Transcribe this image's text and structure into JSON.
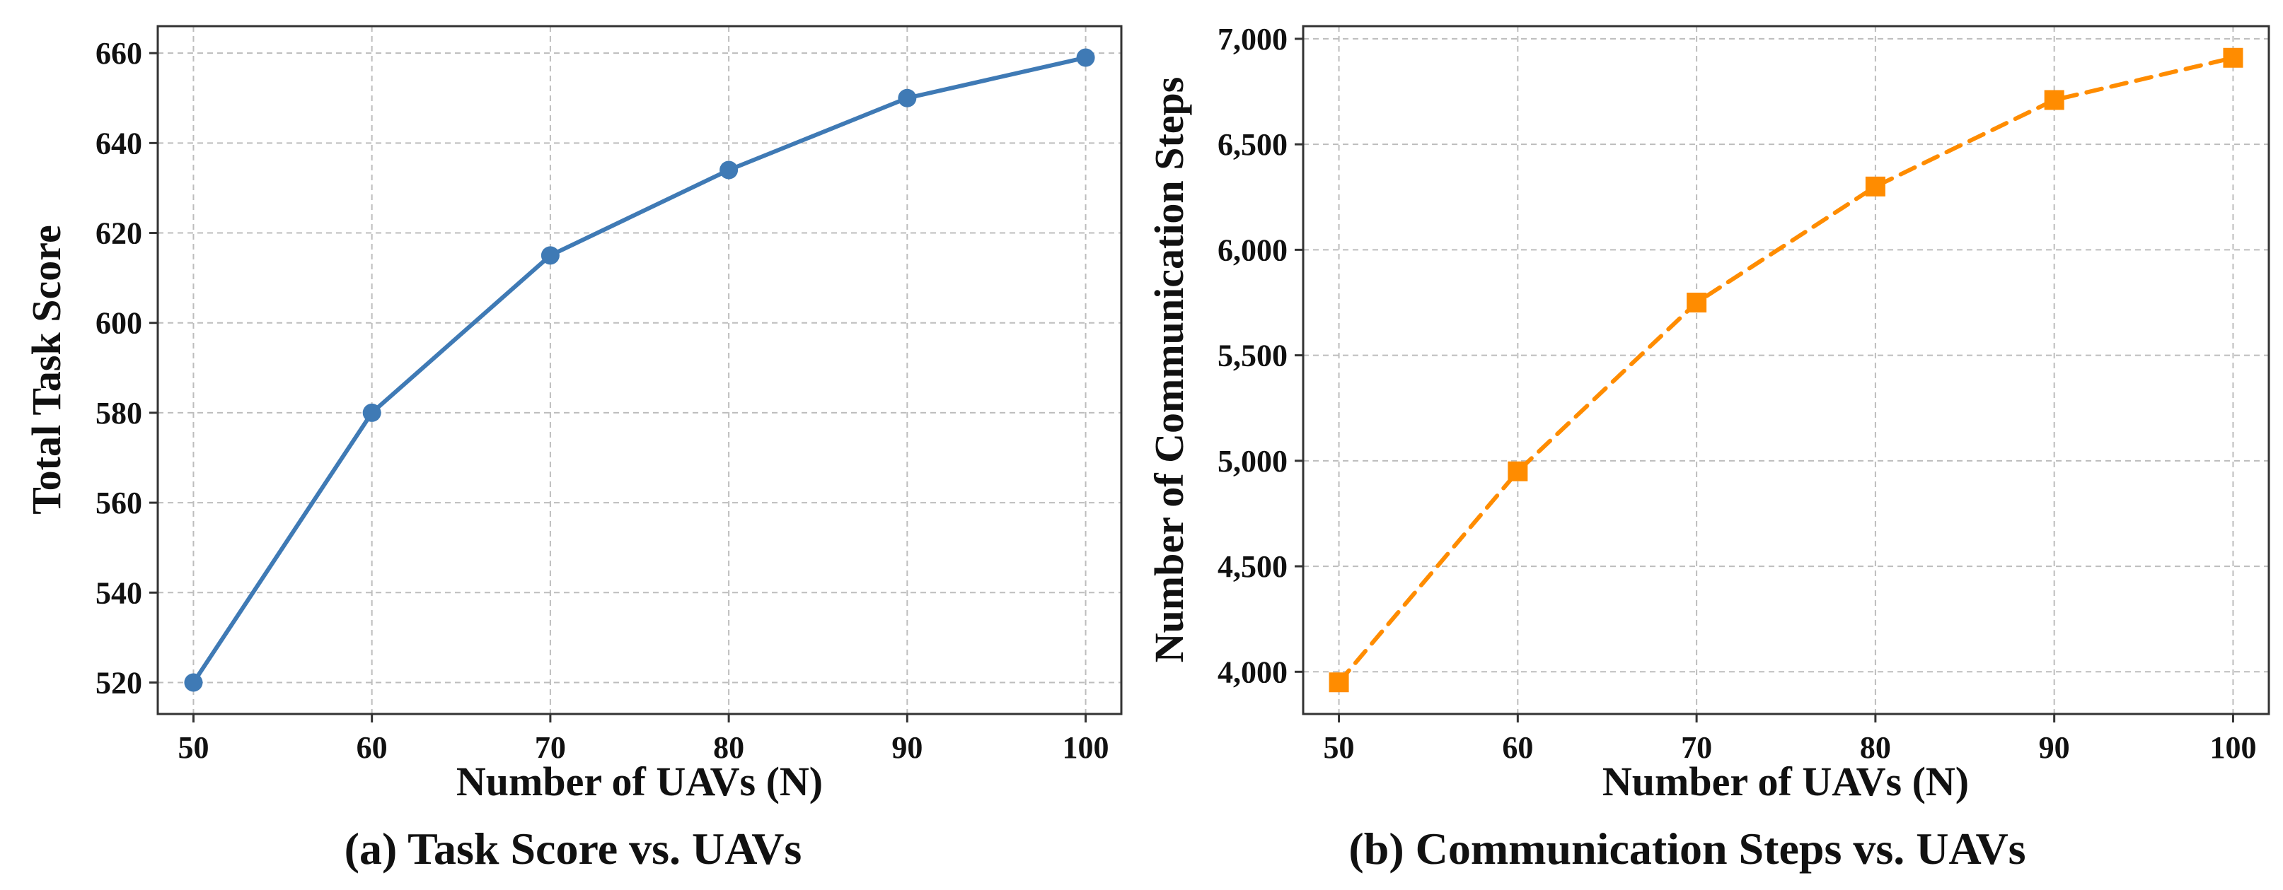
{
  "chart_data": [
    {
      "type": "line",
      "title": "(a) Task Score vs. UAVs",
      "xlabel": "Number of UAVs (N)",
      "ylabel": "Total Task Score",
      "x": [
        50,
        60,
        70,
        80,
        90,
        100
      ],
      "xticks": [
        "50",
        "60",
        "70",
        "80",
        "90",
        "100"
      ],
      "xlim": [
        48,
        102
      ],
      "yticks": [
        "520",
        "540",
        "560",
        "580",
        "600",
        "620",
        "640",
        "660"
      ],
      "ytick_values": [
        520,
        540,
        560,
        580,
        600,
        620,
        640,
        660
      ],
      "ylim": [
        513,
        666
      ],
      "grid": true,
      "series": [
        {
          "name": "Total Task Score",
          "values": [
            520,
            580,
            615,
            634,
            650,
            659
          ],
          "color": "#3f7ab5",
          "marker": "circle",
          "linestyle": "solid"
        }
      ]
    },
    {
      "type": "line",
      "title": "(b) Communication Steps vs. UAVs",
      "xlabel": "Number of UAVs (N)",
      "ylabel": "Number of Communication Steps",
      "x": [
        50,
        60,
        70,
        80,
        90,
        100
      ],
      "xticks": [
        "50",
        "60",
        "70",
        "80",
        "90",
        "100"
      ],
      "xlim": [
        48,
        102
      ],
      "yticks": [
        "4,000",
        "4,500",
        "5,000",
        "5,500",
        "6,000",
        "6,500",
        "7,000"
      ],
      "ytick_values": [
        4000,
        4500,
        5000,
        5500,
        6000,
        6500,
        7000
      ],
      "ylim": [
        3800,
        7060
      ],
      "grid": true,
      "series": [
        {
          "name": "Communication Steps",
          "values": [
            3950,
            4950,
            5750,
            6300,
            6710,
            6910
          ],
          "color": "#ff8c00",
          "marker": "square",
          "linestyle": "dashed"
        }
      ]
    }
  ]
}
